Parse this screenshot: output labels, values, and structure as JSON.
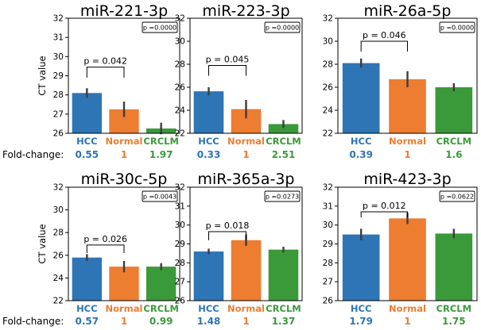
{
  "colors": {
    "HCC": "#2e75b6",
    "Normal": "#ed7d31",
    "CRCLM": "#3a9a3a"
  },
  "y_axis_label": "CT value",
  "fold_change_label": "Fold-change:",
  "chart_data": [
    {
      "type": "bar",
      "title": "miR-221-3p",
      "categories": [
        "HCC",
        "Normal",
        "CRCLM"
      ],
      "values": [
        28.1,
        27.25,
        26.25
      ],
      "errors": [
        0.25,
        0.4,
        0.3
      ],
      "ylim": [
        26,
        32
      ],
      "yticks": [
        26,
        27,
        28,
        29,
        30,
        31,
        32
      ],
      "ylabel": "CT value",
      "pbox": "p =0.0000",
      "annotation": {
        "text": "p = 0.042",
        "between": [
          0,
          1
        ],
        "y": 29.45,
        "drop": 0.55
      },
      "fold_change": [
        "0.55",
        "1",
        "1.97"
      ]
    },
    {
      "type": "bar",
      "title": "miR-223-3p",
      "categories": [
        "HCC",
        "Normal",
        "CRCLM"
      ],
      "values": [
        25.65,
        24.1,
        22.8
      ],
      "errors": [
        0.35,
        0.8,
        0.35
      ],
      "ylim": [
        22,
        32
      ],
      "yticks": [
        22,
        24,
        26,
        28,
        30,
        32
      ],
      "ylabel": "",
      "pbox": "p =0.0000",
      "annotation": {
        "text": "p = 0.045",
        "between": [
          0,
          1
        ],
        "y": 27.9,
        "drop": 0.9
      },
      "fold_change": [
        "0.33",
        "1",
        "2.51"
      ]
    },
    {
      "type": "bar",
      "title": "miR-26a-5p",
      "categories": [
        "HCC",
        "Normal",
        "CRCLM"
      ],
      "values": [
        28.1,
        26.7,
        26.0
      ],
      "errors": [
        0.4,
        0.7,
        0.35
      ],
      "ylim": [
        22,
        32
      ],
      "yticks": [
        22,
        24,
        26,
        28,
        30,
        32
      ],
      "ylabel": "",
      "pbox": "p =0.0000",
      "annotation": {
        "text": "p = 0.046",
        "between": [
          0,
          1
        ],
        "y": 30.0,
        "drop": 0.9
      },
      "fold_change": [
        "0.39",
        "1",
        "1.6"
      ]
    },
    {
      "type": "bar",
      "title": "miR-30c-5p",
      "categories": [
        "HCC",
        "Normal",
        "CRCLM"
      ],
      "values": [
        25.8,
        25.0,
        25.0
      ],
      "errors": [
        0.3,
        0.5,
        0.3
      ],
      "ylim": [
        22,
        32
      ],
      "yticks": [
        22,
        24,
        26,
        28,
        30,
        32
      ],
      "ylabel": "CT value",
      "pbox": "p =0.0043",
      "annotation": {
        "text": "p = 0.026",
        "between": [
          0,
          1
        ],
        "y": 26.9,
        "drop": 0.7
      },
      "fold_change": [
        "0.57",
        "1",
        "0.99"
      ]
    },
    {
      "type": "bar",
      "title": "miR-365a-3p",
      "categories": [
        "HCC",
        "Normal",
        "CRCLM"
      ],
      "values": [
        28.6,
        29.2,
        28.7
      ],
      "errors": [
        0.15,
        0.3,
        0.15
      ],
      "ylim": [
        26,
        32
      ],
      "yticks": [
        26,
        27,
        28,
        29,
        30,
        31,
        32
      ],
      "ylabel": "",
      "pbox": "p =0.0273",
      "annotation": {
        "text": "p = 0.018",
        "between": [
          0,
          1
        ],
        "y": 29.65,
        "drop": 0.45
      },
      "fold_change": [
        "1.48",
        "1",
        "1.37"
      ]
    },
    {
      "type": "bar",
      "title": "miR-423-3p",
      "categories": [
        "HCC",
        "Normal",
        "CRCLM"
      ],
      "values": [
        29.5,
        30.35,
        29.55
      ],
      "errors": [
        0.3,
        0.3,
        0.25
      ],
      "ylim": [
        26,
        32
      ],
      "yticks": [
        26,
        27,
        28,
        29,
        30,
        31,
        32
      ],
      "ylabel": "",
      "pbox": "p =0.0622",
      "annotation": {
        "text": "p = 0.012",
        "between": [
          0,
          1
        ],
        "y": 30.7,
        "drop": 0.3
      },
      "fold_change": [
        "1.79",
        "1",
        "1.75"
      ]
    }
  ]
}
